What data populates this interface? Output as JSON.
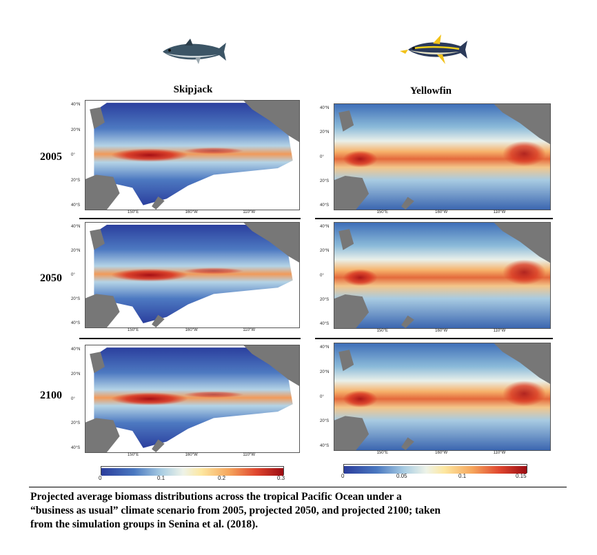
{
  "columns": [
    {
      "title": "Skipjack",
      "icon": "skipjack-tuna-icon"
    },
    {
      "title": "Yellowfin",
      "icon": "yellowfin-tuna-icon"
    }
  ],
  "years": [
    "2005",
    "2050",
    "2100"
  ],
  "map_labels": {
    "lat": [
      "40°N",
      "20°N",
      "0°",
      "20°S",
      "40°S"
    ],
    "lon": [
      "150°E",
      "160°W",
      "110°W"
    ]
  },
  "colorbars": {
    "skipjack": {
      "ticks": [
        "0",
        "0.1",
        "0.2",
        "0.3"
      ],
      "min": 0,
      "max": 0.3
    },
    "yellowfin": {
      "ticks": [
        "0",
        "0.05",
        "0.1",
        "0.15"
      ],
      "min": 0,
      "max": 0.15
    }
  },
  "colors": {
    "land": "#777777",
    "low": "#2a3f9e",
    "mid": "#d8e6ee",
    "high": "#a50f15"
  },
  "caption": {
    "line1": "Projected average biomass distributions across the tropical Pacific Ocean under a",
    "line2": "“business as usual” climate scenario from 2005, projected 2050, and projected 2100; taken",
    "line3": "from the simulation groups in Senina et al. (2018)."
  }
}
